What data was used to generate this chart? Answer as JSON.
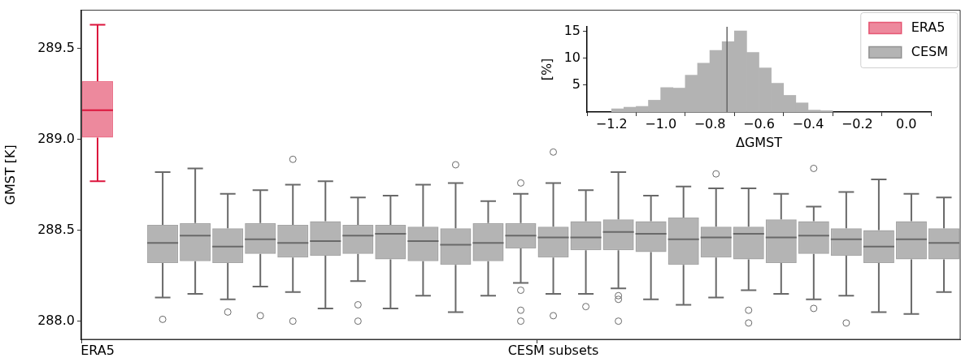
{
  "chart_data": [
    {
      "type": "box",
      "categories": [
        "ERA5",
        null,
        null,
        null,
        null,
        null,
        null,
        null,
        null,
        null,
        null,
        null,
        null,
        null,
        "CESM subsets",
        null,
        null,
        null,
        null,
        null,
        null,
        null,
        null,
        null,
        null,
        null,
        null
      ],
      "ylabel": "GMST [K]",
      "ylim": [
        287.9,
        289.71
      ],
      "yticks": [
        {
          "value": 288,
          "label": "288.0"
        },
        288.5,
        {
          "value": 289,
          "label": "289.0"
        },
        289.5
      ],
      "grid": false,
      "legend": "top right",
      "series": [
        {
          "name": "ERA5",
          "color": "#dc143c",
          "boxes": [
            {
              "low": 288.77,
              "q1": 289.01,
              "median": 289.16,
              "q3": 289.32,
              "high": 289.63
            },
            null,
            null,
            null,
            null,
            null,
            null,
            null,
            null,
            null,
            null,
            null,
            null,
            null,
            null,
            null,
            null,
            null,
            null,
            null,
            null,
            null,
            null,
            null,
            null,
            null,
            null
          ]
        },
        {
          "name": "CESM",
          "color": "#696969",
          "boxes": [
            null,
            null,
            {
              "low": 288.13,
              "q1": 288.32,
              "median": 288.43,
              "q3": 288.53,
              "high": 288.82,
              "outliers": [
                288.01
              ]
            },
            {
              "low": 288.15,
              "q1": 288.33,
              "median": 288.47,
              "q3": 288.54,
              "high": 288.84
            },
            {
              "low": 288.12,
              "q1": 288.32,
              "median": 288.41,
              "q3": 288.51,
              "high": 288.7,
              "outliers": [
                288.05
              ]
            },
            {
              "low": 288.19,
              "q1": 288.37,
              "median": 288.45,
              "q3": 288.54,
              "high": 288.72,
              "outliers": [
                288.03
              ]
            },
            {
              "low": 288.16,
              "q1": 288.35,
              "median": 288.43,
              "q3": 288.53,
              "high": 288.75,
              "outliers": [
                288.89,
                288.0
              ]
            },
            {
              "low": 288.07,
              "q1": 288.36,
              "median": 288.44,
              "q3": 288.55,
              "high": 288.77
            },
            {
              "low": 288.22,
              "q1": 288.37,
              "median": 288.47,
              "q3": 288.53,
              "high": 288.68,
              "outliers": [
                288.09,
                288.0
              ]
            },
            {
              "low": 288.07,
              "q1": 288.34,
              "median": 288.48,
              "q3": 288.53,
              "high": 288.69
            },
            {
              "low": 288.14,
              "q1": 288.33,
              "median": 288.44,
              "q3": 288.52,
              "high": 288.75
            },
            {
              "low": 288.05,
              "q1": 288.31,
              "median": 288.42,
              "q3": 288.51,
              "high": 288.76,
              "outliers": [
                288.86
              ]
            },
            {
              "low": 288.14,
              "q1": 288.33,
              "median": 288.43,
              "q3": 288.54,
              "high": 288.66
            },
            {
              "low": 288.21,
              "q1": 288.4,
              "median": 288.47,
              "q3": 288.54,
              "high": 288.7,
              "outliers": [
                288.76,
                288.17,
                288.06,
                288.0
              ]
            },
            {
              "low": 288.15,
              "q1": 288.35,
              "median": 288.46,
              "q3": 288.52,
              "high": 288.76,
              "outliers": [
                288.93,
                288.03
              ]
            },
            {
              "low": 288.15,
              "q1": 288.39,
              "median": 288.46,
              "q3": 288.55,
              "high": 288.72,
              "outliers": [
                288.08
              ]
            },
            {
              "low": 288.18,
              "q1": 288.39,
              "median": 288.49,
              "q3": 288.56,
              "high": 288.82,
              "outliers": [
                288.14,
                288.12,
                288.0
              ]
            },
            {
              "low": 288.12,
              "q1": 288.38,
              "median": 288.48,
              "q3": 288.55,
              "high": 288.69
            },
            {
              "low": 288.09,
              "q1": 288.31,
              "median": 288.45,
              "q3": 288.57,
              "high": 288.74
            },
            {
              "low": 288.13,
              "q1": 288.35,
              "median": 288.46,
              "q3": 288.52,
              "high": 288.73,
              "outliers": [
                288.81
              ]
            },
            {
              "low": 288.17,
              "q1": 288.34,
              "median": 288.48,
              "q3": 288.52,
              "high": 288.73,
              "outliers": [
                288.06,
                287.99
              ]
            },
            {
              "low": 288.15,
              "q1": 288.32,
              "median": 288.46,
              "q3": 288.56,
              "high": 288.7
            },
            {
              "low": 288.12,
              "q1": 288.37,
              "median": 288.47,
              "q3": 288.55,
              "high": 288.63,
              "outliers": [
                288.84,
                288.07
              ]
            },
            {
              "low": 288.14,
              "q1": 288.36,
              "median": 288.45,
              "q3": 288.51,
              "high": 288.71,
              "outliers": [
                287.99
              ]
            },
            {
              "low": 288.05,
              "q1": 288.32,
              "median": 288.41,
              "q3": 288.5,
              "high": 288.78
            },
            {
              "low": 288.04,
              "q1": 288.34,
              "median": 288.45,
              "q3": 288.55,
              "high": 288.7
            },
            {
              "low": 288.16,
              "q1": 288.34,
              "median": 288.43,
              "q3": 288.51,
              "high": 288.68
            }
          ]
        }
      ]
    },
    {
      "type": "histogram",
      "xlabel": "ΔGMST",
      "ylabel": "[%]",
      "color": "#b3b3b3",
      "grid": false,
      "bins": [
        -1.2,
        -1.15,
        -1.1,
        -1.05,
        -1.0,
        -0.95,
        -0.9,
        -0.85,
        -0.8,
        -0.75,
        -0.7,
        -0.65,
        -0.6,
        -0.55,
        -0.5,
        -0.45,
        -0.4,
        -0.35,
        -0.3
      ],
      "values": [
        0.6,
        0.9,
        1.05,
        2.2,
        4.55,
        4.45,
        6.85,
        9.1,
        11.45,
        13.1,
        15.1,
        11.1,
        8.2,
        5.35,
        3.1,
        1.7,
        0.35,
        0.25
      ],
      "xlim": [
        -1.2,
        0
      ],
      "xticks": [
        {
          "value": -1.2,
          "label": "−1.2"
        },
        {
          "value": -1.0,
          "label": "−1.0"
        },
        {
          "value": -0.8,
          "label": "−0.8"
        },
        {
          "value": -0.6,
          "label": "−0.6"
        },
        {
          "value": -0.4,
          "label": "−0.4"
        },
        {
          "value": -0.2,
          "label": "−0.2"
        },
        {
          "value": 0,
          "label": "0.0"
        }
      ],
      "ylim": [
        0,
        15.85
      ],
      "yticks": [
        5,
        10,
        15
      ],
      "ref_lines": [
        {
          "axis": "x",
          "value": -0.73,
          "color": "#666666"
        }
      ]
    }
  ]
}
